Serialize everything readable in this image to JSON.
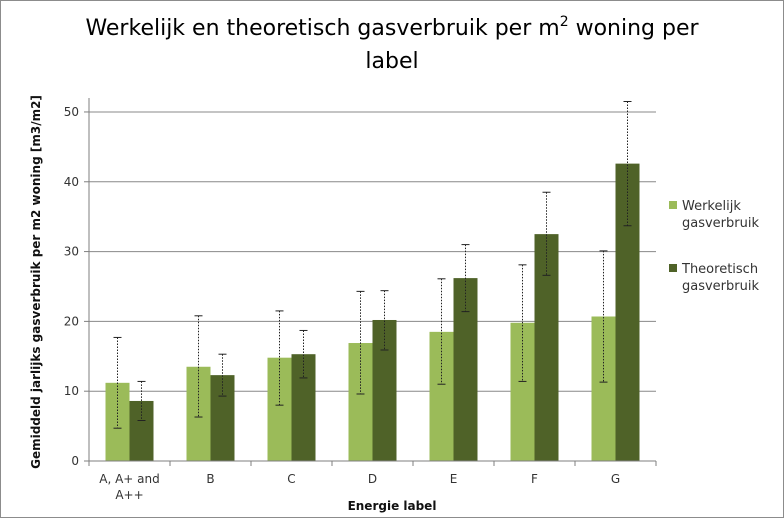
{
  "colors": {
    "werkelijk": "#9bbb59",
    "theoretisch": "#4f6228",
    "grid": "#888888",
    "axis": "#7f7f7f"
  },
  "chart_data": {
    "type": "bar",
    "title_line1": "Werkelijk en theoretisch gasverbruik per m",
    "title_sup": "2",
    "title_line1_rest": " woning per",
    "title_line2": "label",
    "xlabel": "Energie label",
    "ylabel": "Gemiddeld jarlijks gasverbruik per m2 woning [m3/m2]",
    "ylim": [
      0,
      52
    ],
    "yticks": [
      0,
      10,
      20,
      30,
      40,
      50
    ],
    "grid": true,
    "legend_position": "right",
    "categories": [
      [
        "A, A+ and",
        "A++"
      ],
      [
        "B"
      ],
      [
        "C"
      ],
      [
        "D"
      ],
      [
        "E"
      ],
      [
        "F"
      ],
      [
        "G"
      ]
    ],
    "series": [
      {
        "name": "Werkelijk gasverbruik",
        "legend_lines": [
          "Werkelijk",
          "gasverbruik"
        ],
        "values": [
          11.2,
          13.5,
          14.8,
          16.9,
          18.5,
          19.8,
          20.7
        ],
        "err_low": [
          4.7,
          6.3,
          8.0,
          9.6,
          11.0,
          11.4,
          11.3
        ],
        "err_high": [
          17.7,
          20.8,
          21.5,
          24.3,
          26.1,
          28.1,
          30.1
        ]
      },
      {
        "name": "Theoretisch gasverbruik",
        "legend_lines": [
          "Theoretisch",
          "gasverbruik"
        ],
        "values": [
          8.6,
          12.3,
          15.3,
          20.2,
          26.2,
          32.5,
          42.6
        ],
        "err_low": [
          5.8,
          9.3,
          11.9,
          15.9,
          21.4,
          26.6,
          33.7
        ],
        "err_high": [
          11.4,
          15.3,
          18.7,
          24.4,
          31.0,
          38.5,
          51.5
        ]
      }
    ]
  }
}
